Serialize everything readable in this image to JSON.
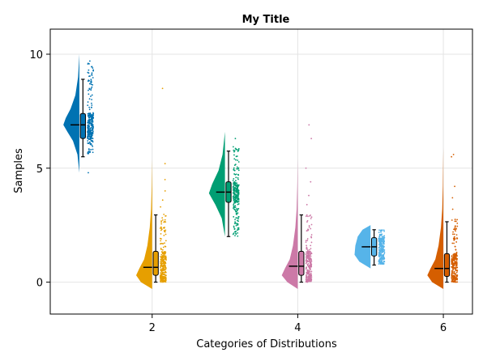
{
  "chart_data": {
    "type": "raincloud",
    "title": "My Title",
    "xlabel": "Categories of Distributions",
    "ylabel": "Samples",
    "xlim": [
      0.6,
      6.4
    ],
    "ylim": [
      -1.4,
      11.1
    ],
    "xticks": [
      2,
      4,
      6
    ],
    "yticks": [
      0,
      5,
      10
    ],
    "grid": true,
    "legend": "none",
    "series": [
      {
        "category": 1,
        "color": "#0072B2",
        "density": [
          [
            4.8,
            0.0
          ],
          [
            5.6,
            0.12
          ],
          [
            6.2,
            0.4
          ],
          [
            6.6,
            0.75
          ],
          [
            6.9,
            1.0
          ],
          [
            7.2,
            0.85
          ],
          [
            7.6,
            0.55
          ],
          [
            8.2,
            0.25
          ],
          [
            9.0,
            0.08
          ],
          [
            10.0,
            0.0
          ]
        ],
        "box": {
          "whisker_low": 5.5,
          "q1": 6.3,
          "median": 6.9,
          "q3": 7.4,
          "whisker_high": 8.9
        },
        "points_range": [
          4.8,
          9.7
        ],
        "outliers": [
          4.8,
          9.6,
          9.7
        ]
      },
      {
        "category": 2,
        "color": "#E69F00",
        "density": [
          [
            -0.3,
            0.0
          ],
          [
            0.0,
            0.7
          ],
          [
            0.3,
            1.0
          ],
          [
            0.6,
            0.8
          ],
          [
            1.0,
            0.5
          ],
          [
            1.6,
            0.3
          ],
          [
            2.4,
            0.15
          ],
          [
            3.2,
            0.07
          ],
          [
            4.2,
            0.03
          ],
          [
            5.4,
            0.0
          ]
        ],
        "box": {
          "whisker_low": 0.0,
          "q1": 0.3,
          "median": 0.65,
          "q3": 1.35,
          "whisker_high": 2.95
        },
        "points_range": [
          0.0,
          3.0
        ],
        "outliers": [
          3.3,
          3.6,
          4.0,
          4.5,
          5.2,
          8.5
        ]
      },
      {
        "category": 3,
        "color": "#009E73",
        "density": [
          [
            2.0,
            0.0
          ],
          [
            2.8,
            0.2
          ],
          [
            3.4,
            0.6
          ],
          [
            3.9,
            1.0
          ],
          [
            4.3,
            0.8
          ],
          [
            4.9,
            0.4
          ],
          [
            5.6,
            0.15
          ],
          [
            6.6,
            0.0
          ]
        ],
        "box": {
          "whisker_low": 2.0,
          "q1": 3.5,
          "median": 3.95,
          "q3": 4.4,
          "whisker_high": 5.75
        },
        "points_range": [
          1.9,
          6.0
        ],
        "outliers": [
          6.3
        ]
      },
      {
        "category": 4,
        "color": "#CC79A7",
        "density": [
          [
            -0.3,
            0.0
          ],
          [
            0.0,
            0.65
          ],
          [
            0.3,
            1.0
          ],
          [
            0.6,
            0.8
          ],
          [
            1.0,
            0.5
          ],
          [
            1.6,
            0.3
          ],
          [
            2.4,
            0.15
          ],
          [
            3.2,
            0.07
          ],
          [
            4.2,
            0.03
          ],
          [
            5.4,
            0.0
          ]
        ],
        "box": {
          "whisker_low": 0.0,
          "q1": 0.3,
          "median": 0.7,
          "q3": 1.35,
          "whisker_high": 2.95
        },
        "points_range": [
          0.0,
          3.0
        ],
        "outliers": [
          3.4,
          3.8,
          4.4,
          5.0,
          6.3,
          6.9
        ]
      },
      {
        "category": 5,
        "color": "#56B4E9",
        "density": [
          [
            0.6,
            0.0
          ],
          [
            0.9,
            0.7
          ],
          [
            1.2,
            1.0
          ],
          [
            1.6,
            0.95
          ],
          [
            2.0,
            0.8
          ],
          [
            2.3,
            0.5
          ],
          [
            2.5,
            0.0
          ]
        ],
        "box": {
          "whisker_low": 0.75,
          "q1": 1.15,
          "median": 1.55,
          "q3": 1.95,
          "whisker_high": 2.3
        },
        "points_range": [
          0.8,
          2.3
        ],
        "outliers": []
      },
      {
        "category": 6,
        "color": "#D55E00",
        "density": [
          [
            -0.3,
            0.0
          ],
          [
            0.0,
            0.7
          ],
          [
            0.3,
            1.0
          ],
          [
            0.6,
            0.8
          ],
          [
            1.0,
            0.5
          ],
          [
            1.6,
            0.3
          ],
          [
            2.4,
            0.15
          ],
          [
            3.2,
            0.07
          ],
          [
            4.2,
            0.03
          ],
          [
            5.9,
            0.0
          ]
        ],
        "box": {
          "whisker_low": 0.0,
          "q1": 0.25,
          "median": 0.6,
          "q3": 1.25,
          "whisker_high": 2.65
        },
        "points_range": [
          0.0,
          2.8
        ],
        "outliers": [
          3.2,
          3.7,
          4.2,
          5.5,
          5.6
        ]
      }
    ]
  }
}
